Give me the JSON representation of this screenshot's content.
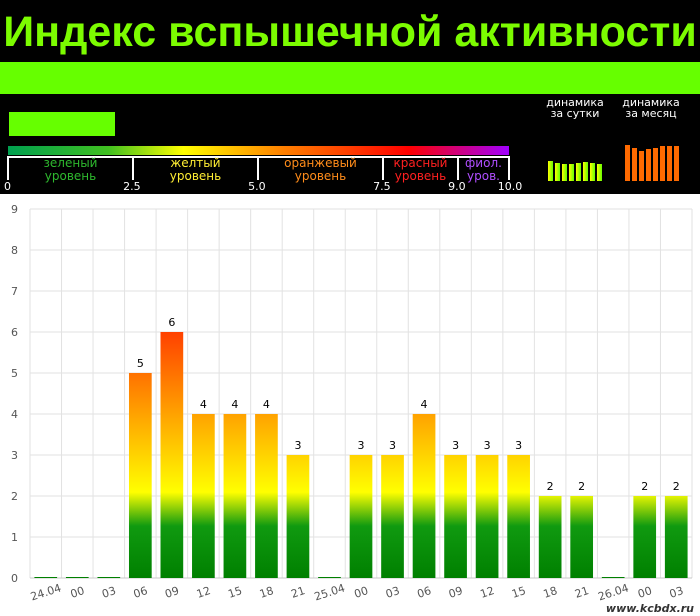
{
  "header": {
    "title": "Индекс вспышечной активности",
    "scale": {
      "levels": [
        {
          "label1": "зеленый",
          "label2": "уровень",
          "color": "#2eb82e"
        },
        {
          "label1": "желтый",
          "label2": "уровень",
          "color": "#ffee33"
        },
        {
          "label1": "оранжевый",
          "label2": "уровень",
          "color": "#ff8c1a"
        },
        {
          "label1": "красный",
          "label2": "уровень",
          "color": "#ff2020"
        },
        {
          "label1": "фиол.",
          "label2": "уров.",
          "color": "#b04fff"
        }
      ],
      "numbers": [
        "0",
        "2.5",
        "5.0",
        "7.5",
        "9.0",
        "10.0"
      ]
    },
    "dynamics_day": {
      "label1": "динамика",
      "label2": "за сутки",
      "bars": [
        0.8,
        0.72,
        0.68,
        0.68,
        0.72,
        0.76,
        0.72,
        0.68
      ],
      "color_a": "#ffff00",
      "color_b": "#66ff00"
    },
    "dynamics_month": {
      "label1": "динамика",
      "label2": "за месяц",
      "bars": [
        1.0,
        0.92,
        0.82,
        0.88,
        0.92,
        0.96,
        0.96,
        0.96
      ],
      "color": "#ff6a00"
    }
  },
  "chart_data": {
    "type": "bar",
    "categories": [
      "24.04",
      "00",
      "03",
      "06",
      "09",
      "12",
      "15",
      "18",
      "21",
      "25.04",
      "00",
      "03",
      "06",
      "09",
      "12",
      "15",
      "18",
      "21",
      "26.04",
      "00",
      "03"
    ],
    "values": [
      0,
      0,
      0,
      5,
      6,
      4,
      4,
      4,
      3,
      0,
      3,
      3,
      4,
      3,
      3,
      3,
      2,
      2,
      0,
      2,
      2
    ],
    "yticks": [
      "0",
      "1",
      "2",
      "3",
      "4",
      "5",
      "6",
      "7",
      "8",
      "9"
    ],
    "ylim": [
      0,
      9
    ],
    "grid": true,
    "title": "",
    "xlabel": "",
    "ylabel": ""
  },
  "watermark": "www.kcbdx.ru"
}
